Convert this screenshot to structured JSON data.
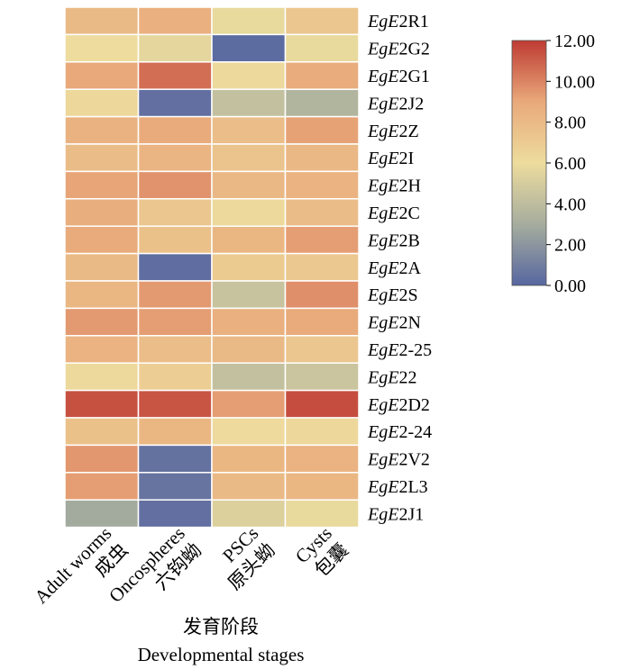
{
  "chart_data": {
    "type": "heatmap",
    "x": [
      "Adult worms",
      "Oncospheres",
      "PSCs",
      "Cysts"
    ],
    "x_cn": [
      "成虫",
      "六钩蚴",
      "原头蚴",
      "包囊"
    ],
    "xlabel_cn": "发育阶段",
    "xlabel": "Developmental stages",
    "rows": [
      {
        "prefix": "Eg",
        "gene": "E",
        "suffix": "2R1"
      },
      {
        "prefix": "Eg",
        "gene": "E",
        "suffix": "2G2"
      },
      {
        "prefix": "Eg",
        "gene": "E",
        "suffix": "2G1"
      },
      {
        "prefix": "Eg",
        "gene": "E",
        "suffix": "2J2"
      },
      {
        "prefix": "Eg",
        "gene": "E",
        "suffix": "2Z"
      },
      {
        "prefix": "Eg",
        "gene": "E",
        "suffix": "2I"
      },
      {
        "prefix": "Eg",
        "gene": "E",
        "suffix": "2H"
      },
      {
        "prefix": "Eg",
        "gene": "E",
        "suffix": "2C"
      },
      {
        "prefix": "Eg",
        "gene": "E",
        "suffix": "2B"
      },
      {
        "prefix": "Eg",
        "gene": "E",
        "suffix": "2A"
      },
      {
        "prefix": "Eg",
        "gene": "E",
        "suffix": "2S"
      },
      {
        "prefix": "Eg",
        "gene": "E",
        "suffix": "2N"
      },
      {
        "prefix": "Eg",
        "gene": "E",
        "suffix": "2-25"
      },
      {
        "prefix": "Eg",
        "gene": "E",
        "suffix": "22"
      },
      {
        "prefix": "Eg",
        "gene": "E",
        "suffix": "2D2"
      },
      {
        "prefix": "Eg",
        "gene": "E",
        "suffix": "2-24"
      },
      {
        "prefix": "Eg",
        "gene": "E",
        "suffix": "2V2"
      },
      {
        "prefix": "Eg",
        "gene": "E",
        "suffix": "2L3"
      },
      {
        "prefix": "Eg",
        "gene": "E",
        "suffix": "2J1"
      }
    ],
    "values": [
      [
        8.0,
        8.6,
        5.8,
        7.3
      ],
      [
        6.0,
        5.6,
        0.2,
        5.8
      ],
      [
        9.0,
        10.6,
        6.2,
        8.8
      ],
      [
        6.3,
        0.4,
        4.2,
        3.5
      ],
      [
        8.5,
        8.9,
        7.8,
        9.2
      ],
      [
        7.9,
        8.3,
        7.5,
        8.1
      ],
      [
        9.1,
        9.6,
        8.1,
        8.4
      ],
      [
        8.7,
        7.3,
        6.2,
        7.9
      ],
      [
        8.9,
        7.6,
        8.2,
        9.3
      ],
      [
        8.0,
        0.3,
        7.0,
        7.2
      ],
      [
        8.2,
        9.4,
        4.4,
        9.7
      ],
      [
        9.4,
        9.3,
        8.6,
        8.9
      ],
      [
        8.4,
        7.8,
        8.0,
        7.3
      ],
      [
        6.2,
        6.8,
        4.2,
        4.5
      ],
      [
        11.4,
        11.3,
        9.3,
        11.5
      ],
      [
        7.6,
        8.2,
        6.1,
        6.3
      ],
      [
        9.5,
        0.5,
        8.2,
        8.4
      ],
      [
        9.3,
        0.6,
        8.0,
        8.2
      ],
      [
        2.9,
        0.4,
        5.3,
        5.8
      ]
    ],
    "colorbar": {
      "min": 0,
      "max": 12,
      "ticks": [
        "0.00",
        "2.00",
        "4.00",
        "6.00",
        "8.00",
        "10.00",
        "12.00"
      ],
      "colors": [
        "#5766a0",
        "#a6ad9e",
        "#eddc9d",
        "#e9a97a",
        "#be3b33"
      ]
    }
  }
}
